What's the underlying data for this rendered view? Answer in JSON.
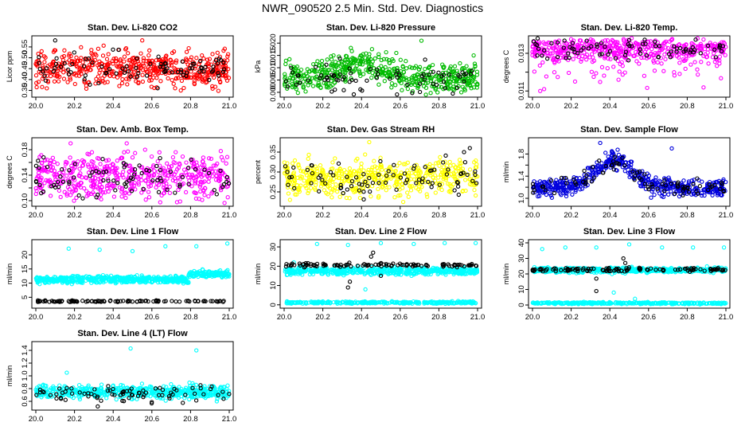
{
  "page_title": "NWR_090520  2.5 Min. Std. Dev. Diagnostics",
  "chart_data": [
    {
      "id": "co2",
      "type": "scatter",
      "title": "Stan. Dev. Li-820 CO2",
      "ylabel": "Licor ppm",
      "xlim": [
        20.0,
        21.0
      ],
      "xticks": [
        "20.0",
        "20.2",
        "20.4",
        "20.6",
        "20.8",
        "21.0"
      ],
      "ylim": [
        0.33,
        0.59
      ],
      "yticks": [
        0.35,
        0.4,
        0.45,
        0.5,
        0.55
      ],
      "ytick_labels": [
        "0.35",
        "0.40",
        "0.45",
        "0.50",
        "0.55"
      ],
      "series": [
        {
          "name": "primary",
          "color": "#ff0000",
          "band_center": 0.45,
          "band_spread": 0.04,
          "n": 520,
          "outliers": [
            [
              20.03,
              0.53
            ],
            [
              20.55,
              0.58
            ],
            [
              20.72,
              0.36
            ]
          ]
        },
        {
          "name": "secondary",
          "color": "#000000",
          "band_center": 0.45,
          "band_spread": 0.035,
          "n": 85,
          "outliers": [
            [
              20.1,
              0.58
            ],
            [
              20.63,
              0.36
            ]
          ]
        }
      ]
    },
    {
      "id": "pressure",
      "type": "scatter",
      "title": "Stan. Dev. Li-820 Pressure",
      "ylabel": "kPa",
      "xlim": [
        20.0,
        21.0
      ],
      "xticks": [
        "20.0",
        "20.2",
        "20.4",
        "20.6",
        "20.8",
        "21.0"
      ],
      "ylim": [
        -0.001,
        0.022
      ],
      "yticks": [
        0.0,
        0.005,
        0.01,
        0.015,
        0.02
      ],
      "ytick_labels": [
        "0.000",
        "0.005",
        "0.010",
        "0.015",
        "0.020"
      ],
      "series": [
        {
          "name": "primary",
          "color": "#00bb00",
          "band_center": 0.006,
          "band_spread": 0.003,
          "n": 520,
          "hump": {
            "center": 20.4,
            "width": 0.15,
            "height": 0.006
          },
          "outliers": [
            [
              20.71,
              0.021
            ],
            [
              20.98,
              0.015
            ],
            [
              20.58,
              0.016
            ]
          ]
        },
        {
          "name": "secondary",
          "color": "#000000",
          "band_center": 0.005,
          "band_spread": 0.003,
          "n": 80,
          "outliers": []
        }
      ]
    },
    {
      "id": "temp",
      "type": "scatter",
      "title": "Stan. Dev. Li-820 Temp.",
      "ylabel": "degrees C",
      "xlim": [
        20.0,
        21.0
      ],
      "xticks": [
        "20.0",
        "20.2",
        "20.4",
        "20.6",
        "20.8",
        "21.0"
      ],
      "ylim": [
        0.0108,
        0.0138
      ],
      "yticks": [
        0.011,
        0.012,
        0.013
      ],
      "ytick_labels": [
        "0.011",
        "",
        "0.013"
      ],
      "series": [
        {
          "name": "primary",
          "color": "#ff00ff",
          "band_center": 0.0132,
          "band_spread": 0.0003,
          "n": 520,
          "skew_down": true,
          "outliers": [
            [
              20.04,
              0.011
            ],
            [
              20.06,
              0.0111
            ],
            [
              20.22,
              0.0115
            ]
          ]
        },
        {
          "name": "secondary",
          "color": "#000000",
          "band_center": 0.0132,
          "band_spread": 0.0003,
          "n": 80,
          "outliers": [
            [
              20.5,
              0.0137
            ]
          ]
        }
      ]
    },
    {
      "id": "ambbox",
      "type": "scatter",
      "title": "Stan. Dev. Amb. Box Temp.",
      "ylabel": "degrees C",
      "xlim": [
        20.0,
        21.0
      ],
      "xticks": [
        "20.0",
        "20.2",
        "20.4",
        "20.6",
        "20.8",
        "21.0"
      ],
      "ylim": [
        0.095,
        0.195
      ],
      "yticks": [
        0.1,
        0.12,
        0.14,
        0.16,
        0.18
      ],
      "ytick_labels": [
        "0.10",
        "",
        "0.14",
        "",
        "0.18"
      ],
      "series": [
        {
          "name": "primary",
          "color": "#ff00ff",
          "band_center": 0.138,
          "band_spread": 0.018,
          "n": 520,
          "outliers": [
            [
              20.18,
              0.19
            ],
            [
              20.47,
              0.19
            ]
          ]
        },
        {
          "name": "secondary",
          "color": "#000000",
          "band_center": 0.135,
          "band_spread": 0.016,
          "n": 85,
          "outliers": []
        }
      ]
    },
    {
      "id": "rh",
      "type": "scatter",
      "title": "Stan. Dev. Gas Stream RH",
      "ylabel": "percent",
      "xlim": [
        20.0,
        21.0
      ],
      "xticks": [
        "20.0",
        "20.2",
        "20.4",
        "20.6",
        "20.8",
        "21.0"
      ],
      "ylim": [
        0.22,
        0.38
      ],
      "yticks": [
        0.25,
        0.3,
        0.35
      ],
      "ytick_labels": [
        "0.25",
        "0.30",
        "0.35"
      ],
      "series": [
        {
          "name": "primary",
          "color": "#ffff00",
          "band_center": 0.285,
          "band_spread": 0.022,
          "n": 520,
          "outliers": [
            [
              20.44,
              0.375
            ],
            [
              20.03,
              0.23
            ]
          ]
        },
        {
          "name": "secondary",
          "color": "#000000",
          "band_center": 0.285,
          "band_spread": 0.025,
          "n": 85,
          "outliers": [
            [
              20.96,
              0.36
            ],
            [
              20.93,
              0.35
            ]
          ]
        }
      ]
    },
    {
      "id": "sampleflow",
      "type": "scatter",
      "title": "Stan. Dev. Sample Flow",
      "ylabel": "ml/min",
      "xlim": [
        20.0,
        21.0
      ],
      "xticks": [
        "20.0",
        "20.2",
        "20.4",
        "20.6",
        "20.8",
        "21.0"
      ],
      "ylim": [
        0.9,
        2.05
      ],
      "yticks": [
        1.0,
        1.2,
        1.4,
        1.6,
        1.8
      ],
      "ytick_labels": [
        "1.0",
        "",
        "1.4",
        "",
        "1.8"
      ],
      "series": [
        {
          "name": "primary",
          "color": "#0000dd",
          "band_center": 1.2,
          "band_spread": 0.08,
          "n": 520,
          "hump": {
            "center": 20.42,
            "width": 0.13,
            "height": 0.5
          },
          "outliers": [
            [
              20.35,
              2.0
            ],
            [
              20.72,
              1.9
            ]
          ]
        },
        {
          "name": "secondary",
          "color": "#000000",
          "band_center": 1.2,
          "band_spread": 0.08,
          "n": 85,
          "hump": {
            "center": 20.42,
            "width": 0.13,
            "height": 0.45
          },
          "outliers": []
        }
      ]
    },
    {
      "id": "line1",
      "type": "scatter",
      "title": "Stan. Dev. Line 1 Flow",
      "ylabel": "ml/min",
      "xlim": [
        20.0,
        21.0
      ],
      "xticks": [
        "20.0",
        "20.2",
        "20.4",
        "20.6",
        "20.8",
        "21.0"
      ],
      "ylim": [
        2.0,
        24.5
      ],
      "yticks": [
        5,
        10,
        15,
        20
      ],
      "ytick_labels": [
        "5",
        "10",
        "15",
        "20"
      ],
      "series": [
        {
          "name": "primary",
          "color": "#00ffff",
          "band_center": 11.3,
          "band_spread": 0.6,
          "n": 600,
          "step": {
            "x": 20.79,
            "to": 13.2
          },
          "outliers": [
            [
              20.17,
              22.2
            ],
            [
              20.33,
              21.8
            ],
            [
              20.5,
              21.3
            ],
            [
              20.67,
              23.0
            ],
            [
              20.83,
              23.0
            ],
            [
              20.99,
              24.0
            ]
          ]
        },
        {
          "name": "secondary",
          "color": "#000000",
          "band_center": 3.6,
          "band_spread": 0.15,
          "n": 110,
          "outliers": []
        }
      ]
    },
    {
      "id": "line2",
      "type": "scatter",
      "title": "Stan. Dev. Line 2 Flow",
      "ylabel": "ml/min",
      "xlim": [
        20.0,
        21.0
      ],
      "xticks": [
        "20.0",
        "20.2",
        "20.4",
        "20.6",
        "20.8",
        "21.0"
      ],
      "ylim": [
        -0.5,
        32.5
      ],
      "yticks": [
        0,
        10,
        20,
        30
      ],
      "ytick_labels": [
        "0",
        "10",
        "20",
        "30"
      ],
      "series": [
        {
          "name": "primary",
          "color": "#00ffff",
          "band_center": 17.5,
          "band_spread": 0.9,
          "n": 520,
          "outliers": [
            [
              20.05,
              22.0
            ],
            [
              20.17,
              31.5
            ],
            [
              20.33,
              31.0
            ],
            [
              20.5,
              32.0
            ],
            [
              20.67,
              31.5
            ],
            [
              20.83,
              32.0
            ],
            [
              20.99,
              32.0
            ],
            [
              20.42,
              8.0
            ]
          ]
        },
        {
          "name": "primary-low",
          "color": "#00ffff",
          "band_center": 1.2,
          "band_spread": 0.3,
          "n": 320,
          "outliers": []
        },
        {
          "name": "secondary",
          "color": "#000000",
          "band_center": 20.7,
          "band_spread": 0.5,
          "n": 110,
          "outliers": [
            [
              20.33,
              9.0
            ],
            [
              20.34,
              12.0
            ],
            [
              20.46,
              27.0
            ],
            [
              20.45,
              25.0
            ],
            [
              20.5,
              15.0
            ]
          ]
        }
      ]
    },
    {
      "id": "line3",
      "type": "scatter",
      "title": "Stan. Dev. Line 3 Flow",
      "ylabel": "ml/min",
      "xlim": [
        20.0,
        21.0
      ],
      "xticks": [
        "20.0",
        "20.2",
        "20.4",
        "20.6",
        "20.8",
        "21.0"
      ],
      "ylim": [
        -0.5,
        40.5
      ],
      "yticks": [
        0,
        10,
        20,
        30,
        40
      ],
      "ytick_labels": [
        "0",
        "10",
        "20",
        "30",
        "40"
      ],
      "series": [
        {
          "name": "primary",
          "color": "#00ffff",
          "band_center": 22.5,
          "band_spread": 0.8,
          "n": 520,
          "outliers": [
            [
              20.05,
              36.0
            ],
            [
              20.17,
              37.0
            ],
            [
              20.33,
              37.0
            ],
            [
              20.5,
              39.0
            ],
            [
              20.67,
              37.0
            ],
            [
              20.83,
              37.0
            ],
            [
              20.99,
              37.0
            ],
            [
              20.42,
              8.0
            ],
            [
              20.53,
              4.0
            ]
          ]
        },
        {
          "name": "primary-low",
          "color": "#00ffff",
          "band_center": 1.2,
          "band_spread": 0.3,
          "n": 320,
          "outliers": []
        },
        {
          "name": "secondary",
          "color": "#000000",
          "band_center": 22.8,
          "band_spread": 0.6,
          "n": 110,
          "outliers": [
            [
              20.33,
              9.0
            ],
            [
              20.33,
              17.0
            ],
            [
              20.47,
              30.0
            ],
            [
              20.48,
              27.0
            ]
          ]
        }
      ]
    },
    {
      "id": "line4",
      "type": "scatter",
      "title": "Stan. Dev. Line 4 (LT) Flow",
      "ylabel": "ml/min",
      "xlim": [
        20.0,
        21.0
      ],
      "xticks": [
        "20.0",
        "20.2",
        "20.4",
        "20.6",
        "20.8",
        "21.0"
      ],
      "ylim": [
        0.5,
        1.5
      ],
      "yticks": [
        0.6,
        0.8,
        1.0,
        1.2,
        1.4
      ],
      "ytick_labels": [
        "0.6",
        "0.8",
        "1.0",
        "1.2",
        "1.4"
      ],
      "series": [
        {
          "name": "primary",
          "color": "#00ffff",
          "band_center": 0.75,
          "band_spread": 0.05,
          "n": 520,
          "outliers": [
            [
              20.16,
              1.05
            ],
            [
              20.49,
              1.43
            ],
            [
              20.83,
              1.4
            ]
          ]
        },
        {
          "name": "secondary",
          "color": "#000000",
          "band_center": 0.72,
          "band_spread": 0.06,
          "n": 80,
          "outliers": [
            [
              20.32,
              0.52
            ]
          ]
        }
      ]
    }
  ]
}
